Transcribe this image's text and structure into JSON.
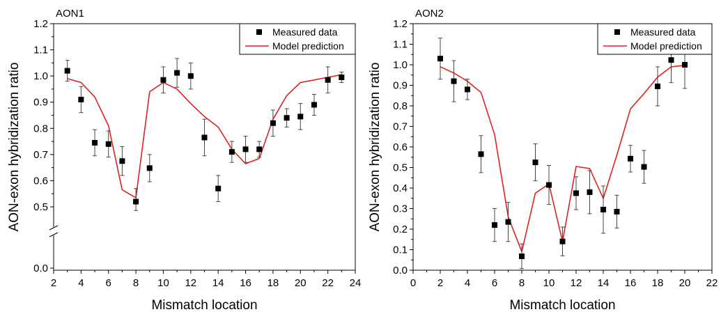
{
  "chart_data": [
    {
      "type": "scatter",
      "title": "AON1",
      "xlabel": "Mismatch location",
      "ylabel": "AON-exon hybridization ratio",
      "xlim": [
        2,
        24
      ],
      "ylim": [
        0,
        1.2
      ],
      "axis_break": [
        0.05,
        0.45
      ],
      "x_ticks": [
        "2",
        "4",
        "6",
        "8",
        "10",
        "12",
        "14",
        "16",
        "18",
        "20",
        "22",
        "24"
      ],
      "y_ticks": [
        "0.0",
        "0.5",
        "0.6",
        "0.7",
        "0.8",
        "0.9",
        "1.0",
        "1.1",
        "1.2"
      ],
      "legend_position": "top-right",
      "series": [
        {
          "name": "Measured data",
          "kind": "points-with-error",
          "color": "#000000",
          "x": [
            3,
            4,
            5,
            6,
            7,
            8,
            9,
            10,
            11,
            12,
            13,
            14,
            15,
            16,
            17,
            18,
            19,
            20,
            21,
            22,
            23
          ],
          "y": [
            1.02,
            0.91,
            0.745,
            0.74,
            0.675,
            0.52,
            0.648,
            0.985,
            1.012,
            1.0,
            0.765,
            0.57,
            0.71,
            0.72,
            0.72,
            0.82,
            0.84,
            0.845,
            0.89,
            0.985,
            0.995
          ],
          "err": [
            0.04,
            0.05,
            0.05,
            0.05,
            0.055,
            0.05,
            0.052,
            0.05,
            0.055,
            0.05,
            0.07,
            0.05,
            0.04,
            0.05,
            0.03,
            0.05,
            0.035,
            0.05,
            0.04,
            0.05,
            0.02
          ]
        },
        {
          "name": "Model prediction",
          "kind": "line",
          "color": "#e0211f",
          "x": [
            3,
            4,
            5,
            6,
            7,
            8,
            9,
            10,
            11,
            12,
            13,
            14,
            15,
            16,
            17,
            18,
            19,
            20,
            21,
            22,
            23
          ],
          "y": [
            0.99,
            0.975,
            0.92,
            0.81,
            0.565,
            0.535,
            0.94,
            0.975,
            0.95,
            0.895,
            0.845,
            0.805,
            0.72,
            0.665,
            0.685,
            0.835,
            0.925,
            0.975,
            0.985,
            0.995,
            1.005
          ]
        }
      ]
    },
    {
      "type": "scatter",
      "title": "AON2",
      "xlabel": "Mismatch location",
      "ylabel": "AON-exon hybridization ratio",
      "xlim": [
        0,
        22
      ],
      "ylim": [
        0,
        1.2
      ],
      "x_ticks": [
        "0",
        "2",
        "4",
        "6",
        "8",
        "10",
        "12",
        "14",
        "16",
        "18",
        "20",
        "22"
      ],
      "y_ticks": [
        "0.0",
        "0.1",
        "0.2",
        "0.3",
        "0.4",
        "0.5",
        "0.6",
        "0.7",
        "0.8",
        "0.9",
        "1.0",
        "1.1",
        "1.2"
      ],
      "legend_position": "top-right",
      "series": [
        {
          "name": "Measured data",
          "kind": "points-with-error",
          "color": "#000000",
          "x": [
            2,
            3,
            4,
            5,
            6,
            7,
            8,
            9,
            10,
            11,
            12,
            13,
            14,
            15,
            16,
            17,
            18,
            19,
            20
          ],
          "y": [
            1.03,
            0.92,
            0.88,
            0.565,
            0.22,
            0.235,
            0.068,
            0.525,
            0.415,
            0.14,
            0.375,
            0.38,
            0.295,
            0.285,
            0.543,
            0.503,
            0.895,
            1.023,
            1.0
          ],
          "err": [
            0.1,
            0.1,
            0.05,
            0.09,
            0.08,
            0.095,
            0.06,
            0.09,
            0.095,
            0.07,
            0.08,
            0.105,
            0.115,
            0.08,
            0.065,
            0.08,
            0.095,
            0.11,
            0.115
          ]
        },
        {
          "name": "Model prediction",
          "kind": "line",
          "color": "#e0211f",
          "x": [
            2,
            3,
            4,
            5,
            6,
            7,
            8,
            9,
            10,
            11,
            12,
            13,
            14,
            15,
            16,
            17,
            18,
            19,
            20
          ],
          "y": [
            0.99,
            0.96,
            0.92,
            0.865,
            0.66,
            0.26,
            0.09,
            0.375,
            0.42,
            0.14,
            0.505,
            0.495,
            0.35,
            0.56,
            0.785,
            0.86,
            0.94,
            0.99,
            0.997
          ]
        }
      ]
    }
  ]
}
